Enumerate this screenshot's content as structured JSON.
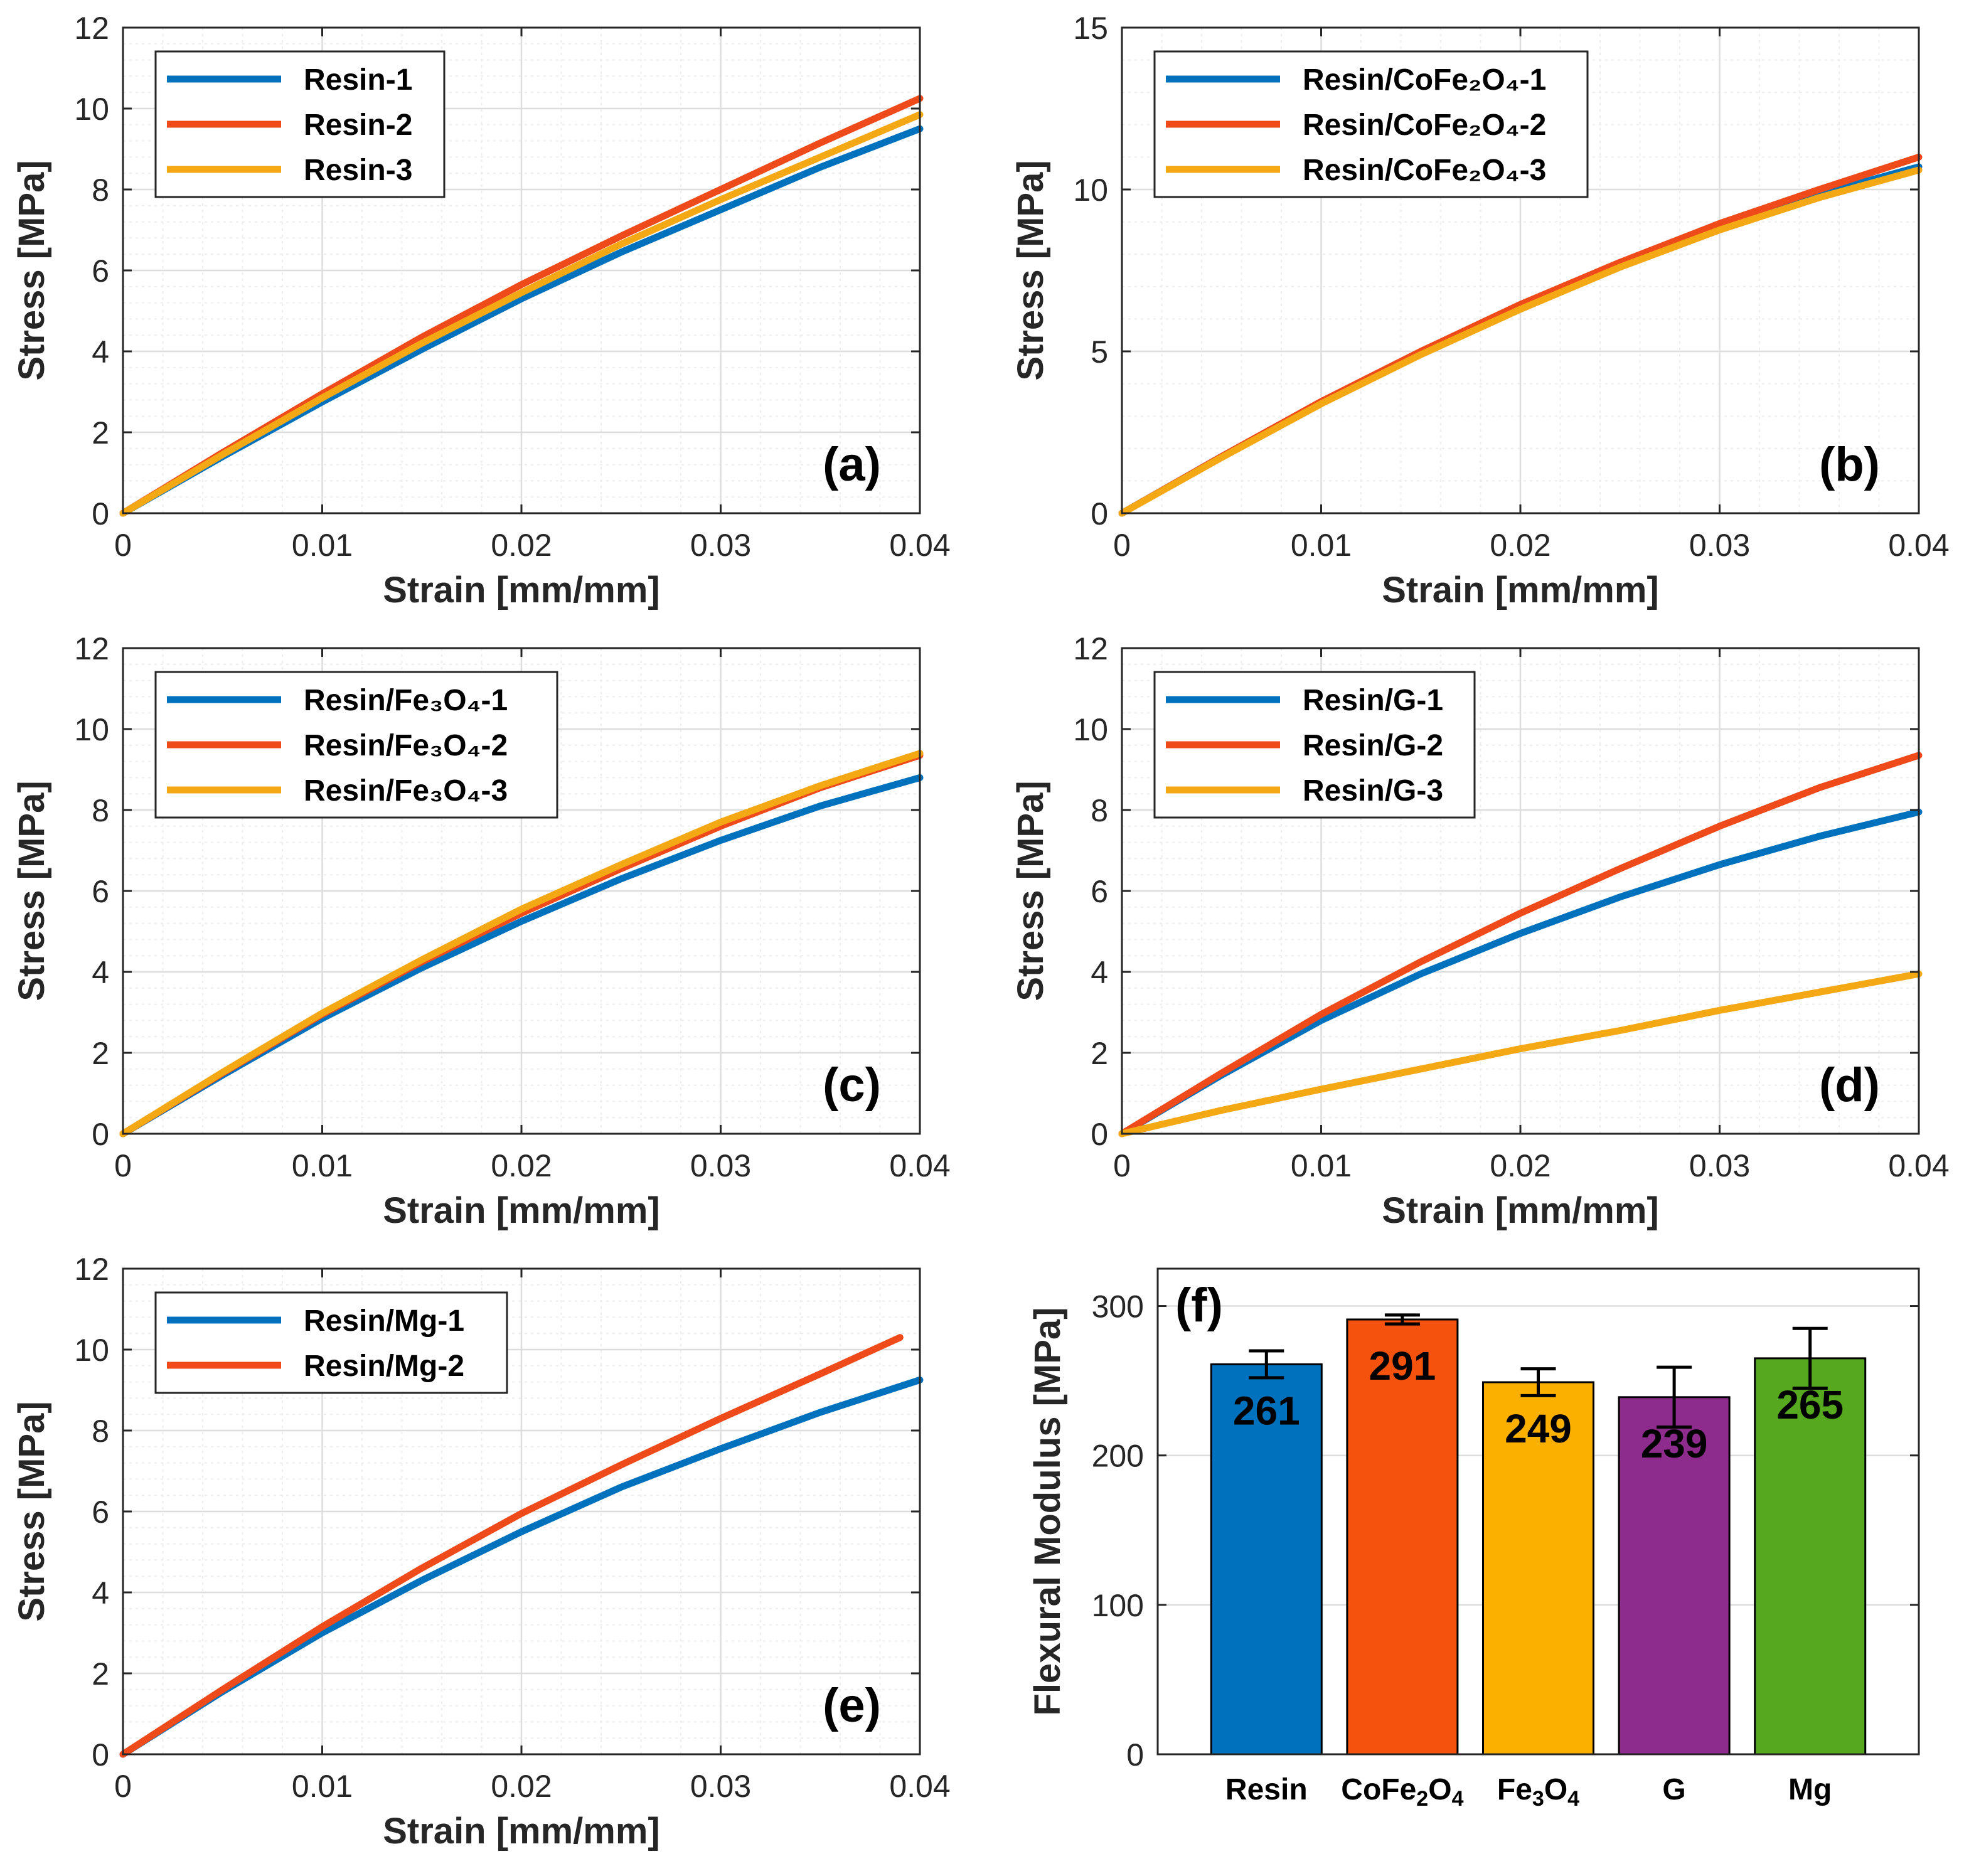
{
  "figure": {
    "background": "#ffffff"
  },
  "colors": {
    "blue": "#0072BD",
    "orange": "#EE4A1A",
    "yellow": "#F4A814",
    "grid": "#DDDDDD",
    "minor_grid": "#EDEDED",
    "axis": "#262626"
  },
  "chart_data": [
    {
      "id": "a",
      "type": "line",
      "panel_label": "(a)",
      "xlabel": "Strain [mm/mm]",
      "ylabel": "Stress [MPa]",
      "xlim": [
        0,
        0.04
      ],
      "ylim": [
        0,
        12
      ],
      "xticks": [
        0,
        0.01,
        0.02,
        0.03,
        0.04
      ],
      "xtick_labels": [
        "0",
        "0.01",
        "0.02",
        "0.03",
        "0.04"
      ],
      "yticks": [
        0,
        2,
        4,
        6,
        8,
        10,
        12
      ],
      "ytick_labels": [
        "0",
        "2",
        "4",
        "6",
        "8",
        "10",
        "12"
      ],
      "legend_position": "top-left",
      "series": [
        {
          "name": "Resin-1",
          "color": "#0072BD",
          "x": [
            0,
            0.005,
            0.01,
            0.015,
            0.02,
            0.025,
            0.03,
            0.035,
            0.04
          ],
          "y": [
            0,
            1.4,
            2.75,
            4.05,
            5.3,
            6.45,
            7.5,
            8.55,
            9.5
          ]
        },
        {
          "name": "Resin-2",
          "color": "#EE4A1A",
          "x": [
            0,
            0.005,
            0.01,
            0.015,
            0.02,
            0.025,
            0.03,
            0.035,
            0.04
          ],
          "y": [
            0,
            1.5,
            2.95,
            4.35,
            5.65,
            6.85,
            8.0,
            9.15,
            10.25
          ]
        },
        {
          "name": "Resin-3",
          "color": "#F4A814",
          "x": [
            0,
            0.005,
            0.01,
            0.015,
            0.02,
            0.025,
            0.03,
            0.035,
            0.04
          ],
          "y": [
            0,
            1.45,
            2.85,
            4.2,
            5.45,
            6.65,
            7.75,
            8.8,
            9.85
          ]
        }
      ]
    },
    {
      "id": "b",
      "type": "line",
      "panel_label": "(b)",
      "xlabel": "Strain [mm/mm]",
      "ylabel": "Stress [MPa]",
      "xlim": [
        0,
        0.04
      ],
      "ylim": [
        0,
        15
      ],
      "xticks": [
        0,
        0.01,
        0.02,
        0.03,
        0.04
      ],
      "xtick_labels": [
        "0",
        "0.01",
        "0.02",
        "0.03",
        "0.04"
      ],
      "yticks": [
        0,
        5,
        10,
        15
      ],
      "ytick_labels": [
        "0",
        "5",
        "10",
        "15"
      ],
      "legend_position": "top-left",
      "series": [
        {
          "name": "Resin/CoFe₂O₄-1",
          "color": "#0072BD",
          "x": [
            0,
            0.005,
            0.01,
            0.015,
            0.02,
            0.025,
            0.03,
            0.035,
            0.04
          ],
          "y": [
            0,
            1.75,
            3.4,
            4.95,
            6.35,
            7.65,
            8.8,
            9.85,
            10.7
          ]
        },
        {
          "name": "Resin/CoFe₂O₄-2",
          "color": "#EE4A1A",
          "x": [
            0,
            0.005,
            0.01,
            0.015,
            0.02,
            0.025,
            0.03,
            0.035,
            0.04
          ],
          "y": [
            0,
            1.75,
            3.45,
            5.0,
            6.45,
            7.75,
            8.95,
            10.0,
            11.0
          ]
        },
        {
          "name": "Resin/CoFe₂O₄-3",
          "color": "#F4A814",
          "x": [
            0,
            0.005,
            0.01,
            0.015,
            0.02,
            0.025,
            0.03,
            0.035,
            0.04
          ],
          "y": [
            0,
            1.72,
            3.38,
            4.9,
            6.3,
            7.6,
            8.75,
            9.75,
            10.6
          ]
        }
      ]
    },
    {
      "id": "c",
      "type": "line",
      "panel_label": "(c)",
      "xlabel": "Strain [mm/mm]",
      "ylabel": "Stress [MPa]",
      "xlim": [
        0,
        0.04
      ],
      "ylim": [
        0,
        12
      ],
      "xticks": [
        0,
        0.01,
        0.02,
        0.03,
        0.04
      ],
      "xtick_labels": [
        "0",
        "0.01",
        "0.02",
        "0.03",
        "0.04"
      ],
      "yticks": [
        0,
        2,
        4,
        6,
        8,
        10,
        12
      ],
      "ytick_labels": [
        "0",
        "2",
        "4",
        "6",
        "8",
        "10",
        "12"
      ],
      "legend_position": "top-left",
      "series": [
        {
          "name": "Resin/Fe₃O₄-1",
          "color": "#0072BD",
          "x": [
            0,
            0.005,
            0.01,
            0.015,
            0.02,
            0.025,
            0.03,
            0.035,
            0.04
          ],
          "y": [
            0,
            1.45,
            2.85,
            4.1,
            5.25,
            6.3,
            7.25,
            8.1,
            8.8
          ]
        },
        {
          "name": "Resin/Fe₃O₄-2",
          "color": "#EE4A1A",
          "x": [
            0,
            0.005,
            0.01,
            0.015,
            0.02,
            0.025,
            0.03,
            0.035,
            0.04
          ],
          "y": [
            0,
            1.5,
            2.95,
            4.25,
            5.45,
            6.55,
            7.6,
            8.55,
            9.35
          ]
        },
        {
          "name": "Resin/Fe₃O₄-3",
          "color": "#F4A814",
          "x": [
            0,
            0.005,
            0.01,
            0.015,
            0.02,
            0.025,
            0.03,
            0.035,
            0.04
          ],
          "y": [
            0,
            1.52,
            2.98,
            4.3,
            5.55,
            6.65,
            7.7,
            8.6,
            9.4
          ]
        }
      ]
    },
    {
      "id": "d",
      "type": "line",
      "panel_label": "(d)",
      "xlabel": "Strain [mm/mm]",
      "ylabel": "Stress [MPa]",
      "xlim": [
        0,
        0.04
      ],
      "ylim": [
        0,
        12
      ],
      "xticks": [
        0,
        0.01,
        0.02,
        0.03,
        0.04
      ],
      "xtick_labels": [
        "0",
        "0.01",
        "0.02",
        "0.03",
        "0.04"
      ],
      "yticks": [
        0,
        2,
        4,
        6,
        8,
        10,
        12
      ],
      "ytick_labels": [
        "0",
        "2",
        "4",
        "6",
        "8",
        "10",
        "12"
      ],
      "legend_position": "top-left",
      "series": [
        {
          "name": "Resin/G-1",
          "color": "#0072BD",
          "x": [
            0,
            0.005,
            0.01,
            0.015,
            0.02,
            0.025,
            0.03,
            0.035,
            0.04
          ],
          "y": [
            0,
            1.45,
            2.8,
            3.95,
            4.95,
            5.85,
            6.65,
            7.35,
            7.95
          ]
        },
        {
          "name": "Resin/G-2",
          "color": "#EE4A1A",
          "x": [
            0,
            0.005,
            0.01,
            0.015,
            0.02,
            0.025,
            0.03,
            0.035,
            0.04
          ],
          "y": [
            0,
            1.5,
            2.95,
            4.25,
            5.45,
            6.55,
            7.6,
            8.55,
            9.35
          ]
        },
        {
          "name": "Resin/G-3",
          "color": "#F4A814",
          "x": [
            0,
            0.005,
            0.01,
            0.015,
            0.02,
            0.025,
            0.03,
            0.035,
            0.04
          ],
          "y": [
            0,
            0.58,
            1.1,
            1.6,
            2.1,
            2.55,
            3.05,
            3.5,
            3.95
          ]
        }
      ]
    },
    {
      "id": "e",
      "type": "line",
      "panel_label": "(e)",
      "xlabel": "Strain [mm/mm]",
      "ylabel": "Stress [MPa]",
      "xlim": [
        0,
        0.04
      ],
      "ylim": [
        0,
        12
      ],
      "xticks": [
        0,
        0.01,
        0.02,
        0.03,
        0.04
      ],
      "xtick_labels": [
        "0",
        "0.01",
        "0.02",
        "0.03",
        "0.04"
      ],
      "yticks": [
        0,
        2,
        4,
        6,
        8,
        10,
        12
      ],
      "ytick_labels": [
        "0",
        "2",
        "4",
        "6",
        "8",
        "10",
        "12"
      ],
      "legend_position": "top-left",
      "series": [
        {
          "name": "Resin/Mg-1",
          "color": "#0072BD",
          "x": [
            0,
            0.005,
            0.01,
            0.015,
            0.02,
            0.025,
            0.03,
            0.035,
            0.04
          ],
          "y": [
            0,
            1.55,
            3.0,
            4.3,
            5.5,
            6.6,
            7.55,
            8.45,
            9.25
          ]
        },
        {
          "name": "Resin/Mg-2",
          "color": "#EE4A1A",
          "x": [
            0,
            0.005,
            0.01,
            0.015,
            0.02,
            0.025,
            0.03,
            0.035,
            0.039
          ],
          "y": [
            0,
            1.6,
            3.15,
            4.6,
            5.95,
            7.15,
            8.3,
            9.4,
            10.3
          ]
        }
      ]
    },
    {
      "id": "f",
      "type": "bar",
      "panel_label": "(f)",
      "xlabel": "",
      "ylabel": "Flexural Modulus [MPa]",
      "ylim": [
        0,
        325
      ],
      "yticks": [
        0,
        100,
        200,
        300
      ],
      "ytick_labels": [
        "0",
        "100",
        "200",
        "300"
      ],
      "categories": [
        "Resin",
        "CoFe2O4",
        "Fe3O4",
        "G",
        "Mg"
      ],
      "category_parts": [
        [
          [
            "Resin",
            false
          ]
        ],
        [
          [
            "CoFe",
            false
          ],
          [
            "2",
            true
          ],
          [
            "O",
            false
          ],
          [
            "4",
            true
          ]
        ],
        [
          [
            "Fe",
            false
          ],
          [
            "3",
            true
          ],
          [
            "O",
            false
          ],
          [
            "4",
            true
          ]
        ],
        [
          [
            "G",
            false
          ]
        ],
        [
          [
            "Mg",
            false
          ]
        ]
      ],
      "values": [
        261,
        291,
        249,
        239,
        265
      ],
      "value_labels": [
        "261",
        "291",
        "249",
        "239",
        "265"
      ],
      "errors": [
        9,
        3,
        9,
        20,
        20
      ],
      "bar_colors": [
        "#0072BD",
        "#F4520D",
        "#FBB000",
        "#8E2C8E",
        "#56A81E"
      ]
    }
  ]
}
